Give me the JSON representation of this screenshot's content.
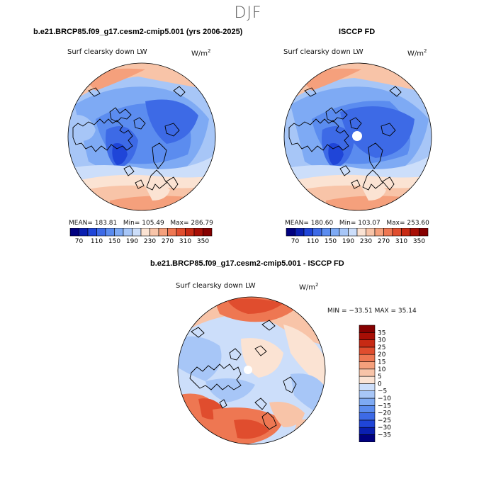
{
  "figure": {
    "season": "DJF",
    "variable": "Surf clearsky down LW",
    "units_base": "W/m",
    "units_exp": "2"
  },
  "panels": {
    "model": {
      "title": "b.e21.BRCP85.f09_g17.cesm2-cmip5.001 (yrs 2006-2025)",
      "stats": {
        "mean_label": "MEAN=",
        "mean": "183.81",
        "min_label": "Min=",
        "min": "105.49",
        "max_label": "Max=",
        "max": "286.79"
      }
    },
    "obs": {
      "title": "ISCCP FD",
      "stats": {
        "mean_label": "MEAN=",
        "mean": "180.60",
        "min_label": "Min=",
        "min": "103.07",
        "max_label": "Max=",
        "max": "253.60"
      }
    },
    "diff": {
      "title": "b.e21.BRCP85.f09_g17.cesm2-cmip5.001 - ISCCP FD",
      "stats_text": "MIN = −33.51 MAX =  35.14"
    }
  },
  "colorbars": {
    "absolute": {
      "colors": [
        "#00007f",
        "#0a1fb0",
        "#1f45d8",
        "#3d6ae6",
        "#5b8cef",
        "#7eaaf4",
        "#a7c6f7",
        "#ccdefa",
        "#fbe3d3",
        "#f8c4a8",
        "#f5a07c",
        "#ee7752",
        "#e04d2e",
        "#c72a14",
        "#a80e05",
        "#860000"
      ],
      "tick_labels": [
        "70",
        "110",
        "150",
        "190",
        "230",
        "270",
        "310",
        "350"
      ]
    },
    "difference": {
      "colors": [
        "#00007f",
        "#0a1fb0",
        "#1f45d8",
        "#3d6ae6",
        "#5b8cef",
        "#7eaaf4",
        "#a7c6f7",
        "#ccdefa",
        "#fbe3d3",
        "#f8c4a8",
        "#f5a07c",
        "#ee7752",
        "#e04d2e",
        "#c72a14",
        "#a80e05",
        "#860000"
      ],
      "tick_labels": [
        "−35",
        "−30",
        "−25",
        "−20",
        "−15",
        "−10",
        "−5",
        "0",
        "5",
        "10",
        "15",
        "20",
        "25",
        "30",
        "35"
      ]
    }
  }
}
